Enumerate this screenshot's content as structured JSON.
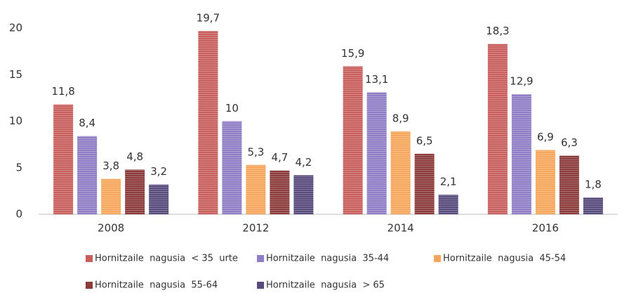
{
  "chart_data": {
    "type": "bar",
    "categories": [
      "2008",
      "2012",
      "2014",
      "2016"
    ],
    "series": [
      {
        "name": "Hornitzaile  nagusia  < 35  urte",
        "color": "#c95f5c",
        "values": [
          11.8,
          19.7,
          15.9,
          18.3
        ],
        "value_labels": [
          "11,8",
          "19,7",
          "15,9",
          "18,3"
        ]
      },
      {
        "name": "Hornitzaile  nagusia  35-44",
        "color": "#8f7dc6",
        "values": [
          8.4,
          10,
          13.1,
          12.9
        ],
        "value_labels": [
          "8,4",
          "10",
          "13,1",
          "12,9"
        ]
      },
      {
        "name": "Hornitzaile  nagusia  45-54",
        "color": "#f5a65b",
        "values": [
          3.8,
          5.3,
          8.9,
          6.9
        ],
        "value_labels": [
          "3,8",
          "5,3",
          "8,9",
          "6,9"
        ]
      },
      {
        "name": "Hornitzaile  nagusia  55-64",
        "color": "#8c3b3b",
        "values": [
          4.8,
          4.7,
          6.5,
          6.3
        ],
        "value_labels": [
          "4,8",
          "4,7",
          "6,5",
          "6,3"
        ]
      },
      {
        "name": "Hornitzaile  nagusia  > 65",
        "color": "#574a7c",
        "values": [
          3.2,
          4.2,
          2.1,
          1.8
        ],
        "value_labels": [
          "3,2",
          "4,2",
          "2,1",
          "1,8"
        ]
      }
    ],
    "ylim": [
      0,
      20
    ],
    "yticks": [
      0,
      5,
      10,
      15,
      20
    ],
    "grid": false,
    "legend": "bottom"
  }
}
